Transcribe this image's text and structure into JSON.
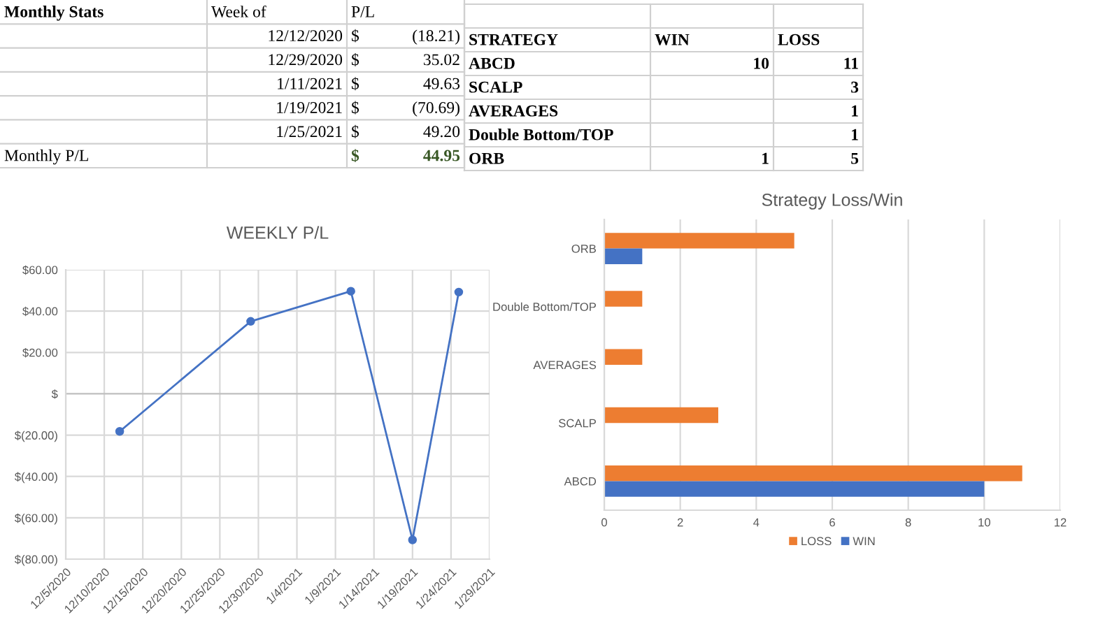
{
  "chart_data": [
    {
      "type": "other",
      "cell_labels": [
        [
          "Monthly Stats",
          "Week of",
          "P/L",
          null
        ],
        [
          null,
          "12/12/2020",
          "$",
          "(18.21)"
        ],
        [
          null,
          "12/29/2020",
          "$",
          "35.02"
        ],
        [
          null,
          "1/11/2021",
          "$",
          "49.63"
        ],
        [
          null,
          "1/19/2021",
          "$",
          "(70.69)"
        ],
        [
          null,
          "1/25/2021",
          "$",
          "49.20"
        ],
        [
          "Monthly P/L",
          null,
          "$",
          "44.95"
        ]
      ],
      "color": "#375623"
    },
    {
      "type": "other",
      "cell_labels": [
        [
          null,
          null,
          null
        ],
        [
          "STRATEGY",
          "WIN",
          "LOSS"
        ],
        [
          "ABCD",
          "10",
          "11"
        ],
        [
          "SCALP",
          null,
          "3"
        ],
        [
          "AVERAGES",
          null,
          "1"
        ],
        [
          "Double Bottom/TOP",
          null,
          "1"
        ],
        [
          "ORB",
          "1",
          "5"
        ]
      ]
    },
    {
      "type": "line",
      "title": "WEEKLY P/L",
      "x": [
        "2020-12-12",
        "2020-12-29",
        "2021-01-11",
        "2021-01-19",
        "2021-01-25"
      ],
      "values": [
        -18.21,
        35.02,
        49.63,
        -70.69,
        49.2
      ],
      "color": "#4472c4",
      "marker": "circle",
      "xlim": [
        "2020-12-05",
        "2021-01-29"
      ],
      "xticks": [
        {
          "value": "2020-12-05",
          "label": "12/5/2020"
        },
        {
          "value": "2020-12-10",
          "label": "12/10/2020"
        },
        {
          "value": "2020-12-15",
          "label": "12/15/2020"
        },
        {
          "value": "2020-12-20",
          "label": "12/20/2020"
        },
        {
          "value": "2020-12-25",
          "label": "12/25/2020"
        },
        {
          "value": "2020-12-30",
          "label": "12/30/2020"
        },
        {
          "value": "2021-01-04",
          "label": "1/4/2021"
        },
        {
          "value": "2021-01-09",
          "label": "1/9/2021"
        },
        {
          "value": "2021-01-14",
          "label": "1/14/2021"
        },
        {
          "value": "2021-01-19",
          "label": "1/19/2021"
        },
        {
          "value": "2021-01-24",
          "label": "1/24/2021"
        },
        {
          "value": "2021-01-29",
          "label": "1/29/2021"
        }
      ],
      "ylim": [
        -80,
        60
      ],
      "yticks": [
        {
          "value": -80,
          "label": "$(80.00)"
        },
        {
          "value": -60,
          "label": "$(60.00)"
        },
        {
          "value": -40,
          "label": "$(40.00)"
        },
        {
          "value": -20,
          "label": "$(20.00)"
        },
        {
          "value": 0,
          "label": "$"
        },
        {
          "value": 20,
          "label": "$20.00"
        },
        {
          "value": 40,
          "label": "$40.00"
        },
        {
          "value": 60,
          "label": "$60.00"
        }
      ],
      "grid": true
    },
    {
      "type": "bar",
      "orientation": "horizontal",
      "title": "Strategy Loss/Win",
      "categories": [
        "ORB",
        "Double Bottom/TOP",
        "AVERAGES",
        "SCALP",
        "ABCD"
      ],
      "series": [
        {
          "name": "LOSS",
          "color": "#ed7d31",
          "values": [
            5,
            1,
            1,
            3,
            11
          ]
        },
        {
          "name": "WIN",
          "color": "#4472c4",
          "values": [
            1,
            null,
            null,
            null,
            10
          ]
        }
      ],
      "xlim": [
        0,
        12
      ],
      "xticks": [
        0,
        2,
        4,
        6,
        8,
        10,
        12
      ],
      "grid": "x",
      "legend": "bottom"
    }
  ]
}
